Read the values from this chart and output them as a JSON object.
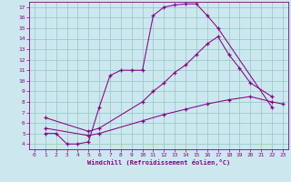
{
  "xlabel": "Windchill (Refroidissement éolien,°C)",
  "bg_color": "#cce8ee",
  "line_color": "#880088",
  "grid_color": "#99cccc",
  "xlim": [
    -0.5,
    23.5
  ],
  "ylim": [
    3.5,
    17.5
  ],
  "xticks": [
    0,
    1,
    2,
    3,
    4,
    5,
    6,
    7,
    8,
    9,
    10,
    11,
    12,
    13,
    14,
    15,
    16,
    17,
    18,
    19,
    20,
    21,
    22,
    23
  ],
  "yticks": [
    4,
    5,
    6,
    7,
    8,
    9,
    10,
    11,
    12,
    13,
    14,
    15,
    16,
    17
  ],
  "line1_x": [
    1,
    2,
    3,
    4,
    5,
    6,
    7,
    8,
    9,
    10,
    11,
    12,
    13,
    14,
    15,
    16,
    17,
    22
  ],
  "line1_y": [
    5,
    5,
    4,
    4,
    4.2,
    7.5,
    10.5,
    11,
    11,
    11,
    16.2,
    17,
    17.2,
    17.3,
    17.3,
    16.2,
    15,
    7.5
  ],
  "line2_x": [
    1,
    5,
    6,
    10,
    11,
    12,
    13,
    14,
    15,
    16,
    17,
    18,
    19,
    20,
    22
  ],
  "line2_y": [
    6.5,
    5.2,
    5.5,
    8.0,
    9.0,
    9.8,
    10.8,
    11.5,
    12.5,
    13.5,
    14.2,
    12.5,
    11.2,
    9.8,
    8.5
  ],
  "line3_x": [
    1,
    5,
    6,
    10,
    12,
    14,
    16,
    18,
    20,
    22,
    23
  ],
  "line3_y": [
    5.5,
    4.8,
    5.0,
    6.2,
    6.8,
    7.3,
    7.8,
    8.2,
    8.5,
    8.0,
    7.8
  ]
}
